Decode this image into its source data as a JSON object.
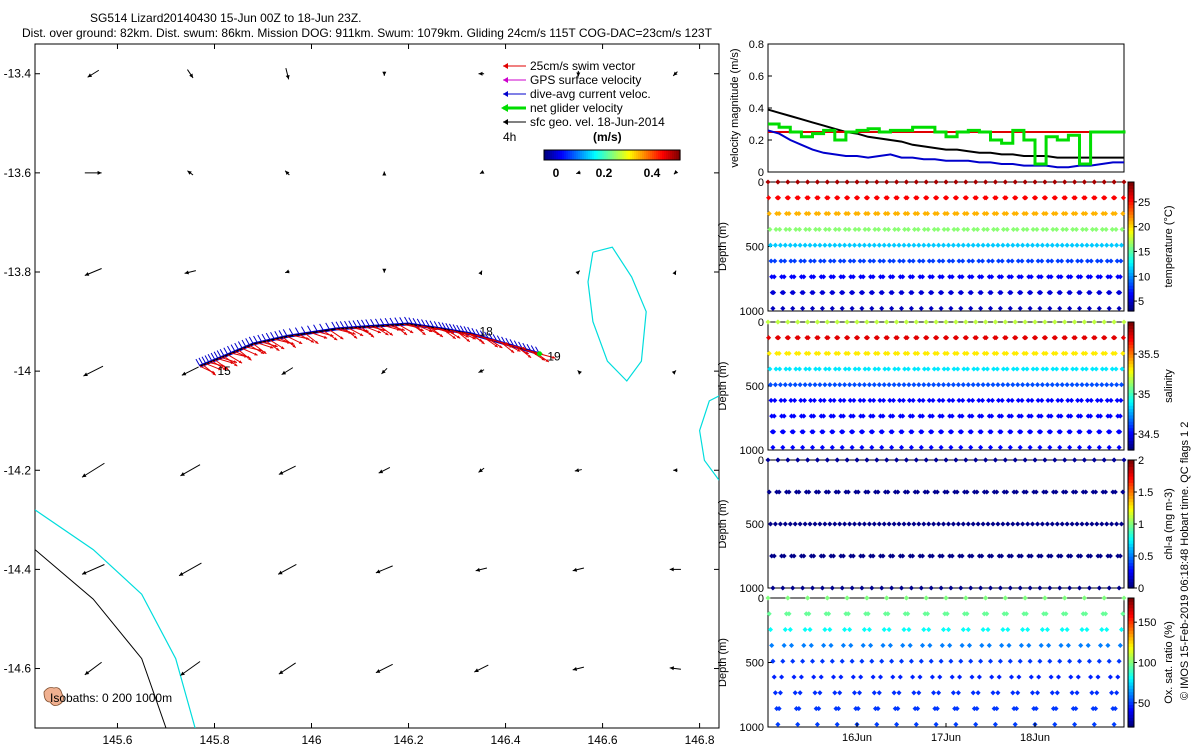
{
  "header": {
    "title": "SG514 Lizard20140430 15-Jun 00Z to 18-Jun 23Z.",
    "subtitle": "Dist. over ground: 82km. Dist. swum: 86km. Mission DOG: 911km. Swum: 1079km. Gliding 24cm/s 115T COG-DAC=23cm/s 123T"
  },
  "footer": {
    "credit": "© IMOS 15-Feb-2019 06:18:48 Hobart time. QC flags 1 2",
    "isobaths": "Isobaths: 0   200  1000m"
  },
  "colors": {
    "swim_vector": "#e00000",
    "gps_velocity": "#cc00cc",
    "dive_avg_current": "#0000cc",
    "net_velocity": "#00dd00",
    "sfc_geo_velocity": "#000000",
    "isobath_0": "#00dddd",
    "isobath_1000": "#000000"
  },
  "chart_data": [
    {
      "id": "map",
      "type": "scatter",
      "title": "",
      "xlabel": "",
      "ylabel": "",
      "xlim": [
        145.43,
        146.84
      ],
      "ylim": [
        -14.72,
        -13.34
      ],
      "xticks": [
        "145.6",
        "145.8",
        "146",
        "146.2",
        "146.4",
        "146.6",
        "146.8"
      ],
      "yticks": [
        "-13.4",
        "-13.6",
        "-13.8",
        "-14",
        "-14.2",
        "-14.4",
        "-14.6"
      ],
      "legend": {
        "position": "top-right",
        "entries": [
          "25cm/s swim vector",
          "GPS surface velocity",
          "dive-avg current veloc.",
          "net glider velocity",
          "sfc geo. vel. 18-Jun-2014"
        ],
        "time_label": "4h",
        "colorbar_title": "(m/s)",
        "colorbar_ticks": [
          "0",
          "0.2",
          "0.4"
        ]
      },
      "day_labels": [
        {
          "text": "15",
          "lon": 145.82,
          "lat": -14.0
        },
        {
          "text": "18",
          "lon": 146.36,
          "lat": -13.92
        },
        {
          "text": "19",
          "lon": 146.5,
          "lat": -13.97
        }
      ],
      "track": [
        [
          145.77,
          -13.99
        ],
        [
          145.82,
          -13.97
        ],
        [
          145.88,
          -13.945
        ],
        [
          145.95,
          -13.93
        ],
        [
          146.05,
          -13.915
        ],
        [
          146.12,
          -13.91
        ],
        [
          146.2,
          -13.905
        ],
        [
          146.27,
          -13.915
        ],
        [
          146.33,
          -13.925
        ],
        [
          146.4,
          -13.945
        ],
        [
          146.47,
          -13.965
        ]
      ],
      "geo_grid": {
        "lons": [
          145.55,
          145.75,
          145.95,
          146.15,
          146.35,
          146.55,
          146.75
        ],
        "lats": [
          -13.4,
          -13.6,
          -13.8,
          -14.0,
          -14.2,
          -14.4,
          -14.6
        ],
        "u_comp": [
          [
            0.08,
            -0.04,
            -0.02,
            0.0,
            0.04,
            0.0,
            0.03
          ],
          [
            -0.12,
            0.04,
            0.03,
            0.0,
            0.02,
            0.03,
            0.02
          ],
          [
            0.12,
            0.08,
            0.03,
            0.0,
            -0.01,
            -0.02,
            -0.01
          ],
          [
            0.14,
            0.12,
            0.08,
            0.04,
            0.04,
            0.01,
            -0.01
          ],
          [
            0.16,
            0.14,
            0.12,
            0.08,
            0.04,
            0.05,
            0.03
          ],
          [
            0.16,
            0.16,
            0.13,
            0.12,
            0.08,
            0.08,
            0.08
          ],
          [
            0.12,
            0.14,
            0.12,
            0.12,
            0.1,
            0.08,
            0.08
          ]
        ],
        "v_comp": [
          [
            -0.05,
            -0.06,
            -0.08,
            -0.03,
            0.0,
            -0.04,
            -0.03
          ],
          [
            0.0,
            0.03,
            0.03,
            0.02,
            -0.01,
            -0.01,
            -0.02
          ],
          [
            -0.05,
            -0.02,
            -0.01,
            -0.01,
            0.02,
            0.02,
            0.02
          ],
          [
            -0.07,
            -0.06,
            -0.05,
            -0.04,
            -0.02,
            0.01,
            0.01
          ],
          [
            -0.1,
            -0.08,
            -0.06,
            -0.04,
            -0.03,
            -0.01,
            0.0
          ],
          [
            -0.07,
            -0.09,
            -0.07,
            -0.05,
            -0.02,
            -0.02,
            0.0
          ],
          [
            -0.09,
            -0.1,
            -0.08,
            -0.06,
            -0.05,
            -0.02,
            0.01
          ]
        ]
      },
      "isobath_0": [
        [
          145.43,
          -14.28
        ],
        [
          145.55,
          -14.36
        ],
        [
          145.65,
          -14.45
        ],
        [
          145.72,
          -14.58
        ],
        [
          145.76,
          -14.72
        ]
      ],
      "isobath_1000": [
        [
          145.43,
          -14.36
        ],
        [
          145.55,
          -14.46
        ],
        [
          145.65,
          -14.58
        ],
        [
          145.7,
          -14.72
        ]
      ],
      "reef_lines": [
        [
          [
            146.58,
            -13.76
          ],
          [
            146.62,
            -13.75
          ],
          [
            146.66,
            -13.81
          ],
          [
            146.69,
            -13.88
          ],
          [
            146.68,
            -13.98
          ],
          [
            146.65,
            -14.02
          ],
          [
            146.61,
            -13.98
          ],
          [
            146.58,
            -13.9
          ],
          [
            146.57,
            -13.82
          ],
          [
            146.58,
            -13.76
          ]
        ],
        [
          [
            146.84,
            -14.05
          ],
          [
            146.82,
            -14.06
          ],
          [
            146.8,
            -14.12
          ],
          [
            146.81,
            -14.18
          ],
          [
            146.84,
            -14.22
          ]
        ]
      ]
    },
    {
      "id": "velocity",
      "type": "line",
      "ylabel": "velocity magnitude (m/s)",
      "ylim": [
        0,
        0.8
      ],
      "yticks": [
        "0",
        "0.2",
        "0.4",
        "0.6",
        "0.8"
      ],
      "x": [
        0,
        3,
        6,
        9,
        12,
        15,
        18,
        21,
        24,
        27,
        30,
        33,
        36,
        39,
        42,
        45,
        48,
        51,
        54,
        57,
        60,
        63,
        66,
        69,
        72,
        75,
        78,
        81,
        84,
        87,
        90,
        93,
        96
      ],
      "series": [
        {
          "name": "sfc geo. vel.",
          "color": "#000000",
          "values": [
            0.39,
            0.37,
            0.35,
            0.33,
            0.31,
            0.29,
            0.27,
            0.25,
            0.24,
            0.22,
            0.21,
            0.2,
            0.19,
            0.17,
            0.16,
            0.15,
            0.14,
            0.14,
            0.13,
            0.12,
            0.12,
            0.11,
            0.11,
            0.1,
            0.1,
            0.1,
            0.09,
            0.09,
            0.09,
            0.09,
            0.09,
            0.09,
            0.09
          ]
        },
        {
          "name": "swim vector",
          "color": "#e00000",
          "values": [
            0.25,
            0.25,
            0.25,
            0.25,
            0.25,
            0.25,
            0.25,
            0.25,
            0.25,
            0.25,
            0.25,
            0.25,
            0.25,
            0.25,
            0.25,
            0.25,
            0.25,
            0.25,
            0.25,
            0.25,
            0.25,
            0.25,
            0.25,
            0.25,
            0.25,
            0.25,
            0.25,
            0.25,
            0.25,
            0.25,
            0.25,
            0.25,
            0.25
          ]
        },
        {
          "name": "dive-avg current",
          "color": "#0000cc",
          "values": [
            0.26,
            0.24,
            0.2,
            0.17,
            0.14,
            0.12,
            0.11,
            0.1,
            0.1,
            0.09,
            0.1,
            0.11,
            0.09,
            0.09,
            0.08,
            0.08,
            0.07,
            0.07,
            0.07,
            0.06,
            0.06,
            0.05,
            0.05,
            0.04,
            0.04,
            0.04,
            0.03,
            0.03,
            0.04,
            0.04,
            0.05,
            0.06,
            0.06
          ]
        },
        {
          "name": "net glider velocity",
          "color": "#00dd00",
          "values": [
            0.3,
            0.28,
            0.25,
            0.22,
            0.24,
            0.26,
            0.2,
            0.25,
            0.26,
            0.27,
            0.25,
            0.26,
            0.26,
            0.28,
            0.28,
            0.25,
            0.22,
            0.25,
            0.26,
            0.25,
            0.2,
            0.18,
            0.26,
            0.2,
            0.05,
            0.22,
            0.2,
            0.23,
            0.05,
            0.25,
            0.25,
            0.25,
            0.26
          ]
        }
      ]
    },
    {
      "id": "temperature",
      "type": "scatter",
      "ylabel": "Depth (m)",
      "ylim": [
        0,
        1000
      ],
      "yticks": [
        "0",
        "500",
        "1000"
      ],
      "colorbar_label": "temperature (°C)",
      "colorbar_ticks": [
        "5",
        "10",
        "15",
        "20",
        "25"
      ],
      "clim": [
        3,
        29
      ],
      "profile_values": {
        "depths_m": [
          0,
          50,
          100,
          150,
          200,
          250,
          300,
          400,
          500,
          600,
          700,
          800,
          900,
          1000
        ],
        "values": [
          28,
          27.5,
          26.5,
          25,
          23,
          21,
          19,
          15,
          11,
          8,
          6.5,
          5.5,
          5,
          4.5
        ]
      },
      "n_profiles": 36
    },
    {
      "id": "salinity",
      "type": "scatter",
      "ylabel": "Depth (m)",
      "ylim": [
        0,
        1000
      ],
      "yticks": [
        "0",
        "500",
        "1000"
      ],
      "colorbar_label": "salinity",
      "colorbar_ticks": [
        "34.5",
        "35",
        "35.5"
      ],
      "clim": [
        34.3,
        35.9
      ],
      "profile_values": {
        "depths_m": [
          0,
          50,
          100,
          150,
          200,
          250,
          300,
          400,
          500,
          600,
          700,
          800,
          900,
          1000
        ],
        "values": [
          35.2,
          35.5,
          35.7,
          35.8,
          35.6,
          35.3,
          35.0,
          34.8,
          34.6,
          34.5,
          34.5,
          34.5,
          34.5,
          34.5
        ]
      },
      "n_profiles": 36
    },
    {
      "id": "chla",
      "type": "scatter",
      "ylabel": "Depth (m)",
      "ylim": [
        0,
        1000
      ],
      "yticks": [
        "0",
        "500",
        "1000"
      ],
      "colorbar_label": "chl-a (mg m-3)",
      "colorbar_ticks": [
        "0",
        "0.5",
        "1",
        "1.5",
        "2"
      ],
      "clim": [
        0,
        2
      ],
      "profile_values": {
        "depths_m": [
          0,
          500,
          1000
        ],
        "values": [
          0.05,
          0.02,
          0.02
        ]
      },
      "n_profiles": 36
    },
    {
      "id": "oxygen",
      "type": "scatter",
      "ylabel": "Depth (m)",
      "ylim": [
        0,
        1000
      ],
      "yticks": [
        "0",
        "500",
        "1000"
      ],
      "colorbar_label": "Ox. sat. ratio (%)",
      "colorbar_ticks": [
        "50",
        "100",
        "150"
      ],
      "clim": [
        20,
        180
      ],
      "profile_values": {
        "depths_m": [
          0,
          100,
          200,
          300,
          400,
          500,
          600,
          800,
          1000
        ],
        "values": [
          100,
          98,
          90,
          70,
          55,
          48,
          45,
          48,
          50
        ]
      },
      "n_profiles": 18,
      "xticks": [
        "16Jun",
        "17Jun",
        "18Jun"
      ]
    }
  ]
}
